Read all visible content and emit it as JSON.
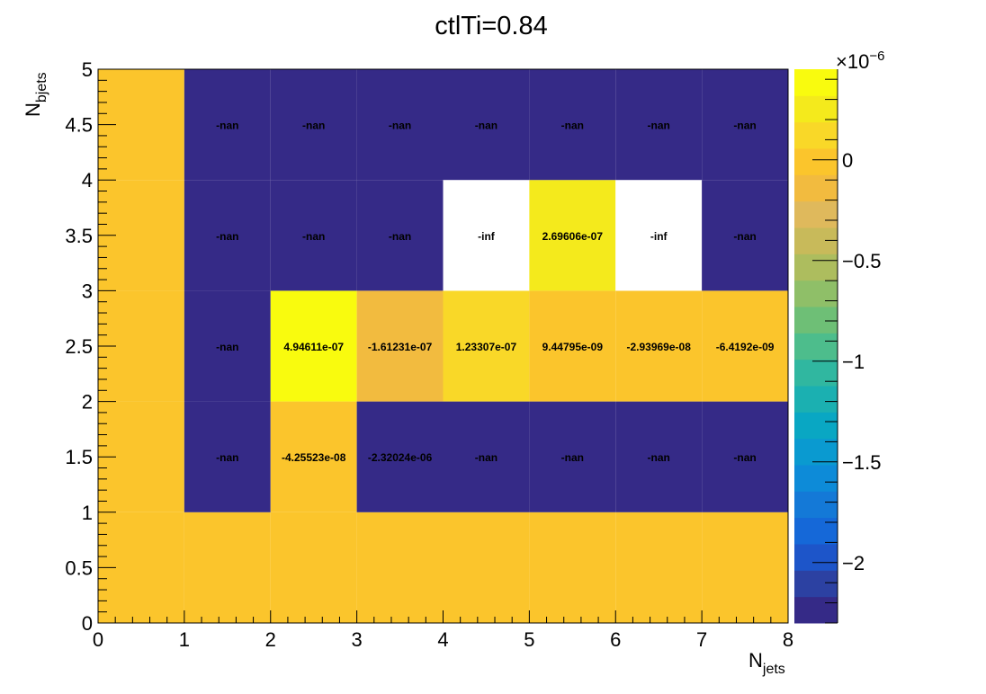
{
  "chart_data": {
    "type": "heatmap",
    "title": "ctlTi=0.84",
    "xlabel": {
      "main": "N",
      "sub": "jets"
    },
    "ylabel": {
      "main": "N",
      "sub": "bjets"
    },
    "xlim": [
      0,
      8
    ],
    "ylim": [
      0,
      5
    ],
    "x_ticks": [
      "0",
      "1",
      "2",
      "3",
      "4",
      "5",
      "6",
      "7",
      "8"
    ],
    "y_ticks": [
      "0",
      "0.5",
      "1",
      "1.5",
      "2",
      "2.5",
      "3",
      "3.5",
      "4",
      "4.5",
      "5"
    ],
    "x_bin_edges": [
      0,
      1,
      2,
      3,
      4,
      5,
      6,
      7,
      8
    ],
    "y_bin_edges": [
      0,
      1,
      2,
      3,
      4,
      5
    ],
    "colorbar": {
      "exponent_label": "×10",
      "exponent_power": "−6",
      "min": -2.3e-06,
      "max": 4.5e-07,
      "ticks": [
        {
          "value": 0,
          "label": "0"
        },
        {
          "value": -5e-07,
          "label": "−0.5"
        },
        {
          "value": -1e-06,
          "label": "−1"
        },
        {
          "value": -1.5e-06,
          "label": "−1.5"
        },
        {
          "value": -2e-06,
          "label": "−2"
        }
      ],
      "colors": [
        "#352a87",
        "#2c41a2",
        "#1d55c9",
        "#1568d8",
        "#1479d7",
        "#0d8bd8",
        "#0a9ad0",
        "#09a7c3",
        "#1bb0b1",
        "#30b7a0",
        "#4dbd8c",
        "#6ebf76",
        "#8fbf68",
        "#adbd5e",
        "#c8ba5a",
        "#dfb95c",
        "#f2bb3f",
        "#fbc52c",
        "#f9d828",
        "#f4ea1c",
        "#f9fb0e"
      ]
    },
    "cells": [
      {
        "x": 0,
        "y": 0,
        "value": 0,
        "label": ""
      },
      {
        "x": 1,
        "y": 0,
        "value": 0,
        "label": ""
      },
      {
        "x": 2,
        "y": 0,
        "value": 0,
        "label": ""
      },
      {
        "x": 3,
        "y": 0,
        "value": 0,
        "label": ""
      },
      {
        "x": 4,
        "y": 0,
        "value": 0,
        "label": ""
      },
      {
        "x": 5,
        "y": 0,
        "value": 0,
        "label": ""
      },
      {
        "x": 6,
        "y": 0,
        "value": 0,
        "label": ""
      },
      {
        "x": 7,
        "y": 0,
        "value": 0,
        "label": ""
      },
      {
        "x": 0,
        "y": 1,
        "value": 0,
        "label": ""
      },
      {
        "x": 1,
        "y": 1,
        "value": "nan",
        "label": "-nan"
      },
      {
        "x": 2,
        "y": 1,
        "value": -4.25523e-08,
        "label": "-4.25523e-08"
      },
      {
        "x": 3,
        "y": 1,
        "value": -2.32024e-06,
        "label": "-2.32024e-06"
      },
      {
        "x": 4,
        "y": 1,
        "value": "nan",
        "label": "-nan"
      },
      {
        "x": 5,
        "y": 1,
        "value": "nan",
        "label": "-nan"
      },
      {
        "x": 6,
        "y": 1,
        "value": "nan",
        "label": "-nan"
      },
      {
        "x": 7,
        "y": 1,
        "value": "nan",
        "label": "-nan"
      },
      {
        "x": 0,
        "y": 2,
        "value": 0,
        "label": ""
      },
      {
        "x": 1,
        "y": 2,
        "value": "nan",
        "label": "-nan"
      },
      {
        "x": 2,
        "y": 2,
        "value": 4.94611e-07,
        "label": "4.94611e-07"
      },
      {
        "x": 3,
        "y": 2,
        "value": -1.61231e-07,
        "label": "-1.61231e-07"
      },
      {
        "x": 4,
        "y": 2,
        "value": 1.23307e-07,
        "label": "1.23307e-07"
      },
      {
        "x": 5,
        "y": 2,
        "value": 9.44795e-09,
        "label": "9.44795e-09"
      },
      {
        "x": 6,
        "y": 2,
        "value": -2.93969e-08,
        "label": "-2.93969e-08"
      },
      {
        "x": 7,
        "y": 2,
        "value": -6.4192e-09,
        "label": "-6.4192e-09"
      },
      {
        "x": 0,
        "y": 3,
        "value": 0,
        "label": ""
      },
      {
        "x": 1,
        "y": 3,
        "value": "nan",
        "label": "-nan"
      },
      {
        "x": 2,
        "y": 3,
        "value": "nan",
        "label": "-nan"
      },
      {
        "x": 3,
        "y": 3,
        "value": "nan",
        "label": "-nan"
      },
      {
        "x": 4,
        "y": 3,
        "value": "-inf",
        "label": "-inf"
      },
      {
        "x": 5,
        "y": 3,
        "value": 2.69606e-07,
        "label": "2.69606e-07"
      },
      {
        "x": 6,
        "y": 3,
        "value": "-inf",
        "label": "-inf"
      },
      {
        "x": 7,
        "y": 3,
        "value": "nan",
        "label": "-nan"
      },
      {
        "x": 0,
        "y": 4,
        "value": 0,
        "label": ""
      },
      {
        "x": 1,
        "y": 4,
        "value": "nan",
        "label": "-nan"
      },
      {
        "x": 2,
        "y": 4,
        "value": "nan",
        "label": "-nan"
      },
      {
        "x": 3,
        "y": 4,
        "value": "nan",
        "label": "-nan"
      },
      {
        "x": 4,
        "y": 4,
        "value": "nan",
        "label": "-nan"
      },
      {
        "x": 5,
        "y": 4,
        "value": "nan",
        "label": "-nan"
      },
      {
        "x": 6,
        "y": 4,
        "value": "nan",
        "label": "-nan"
      },
      {
        "x": 7,
        "y": 4,
        "value": "nan",
        "label": "-nan"
      }
    ]
  }
}
